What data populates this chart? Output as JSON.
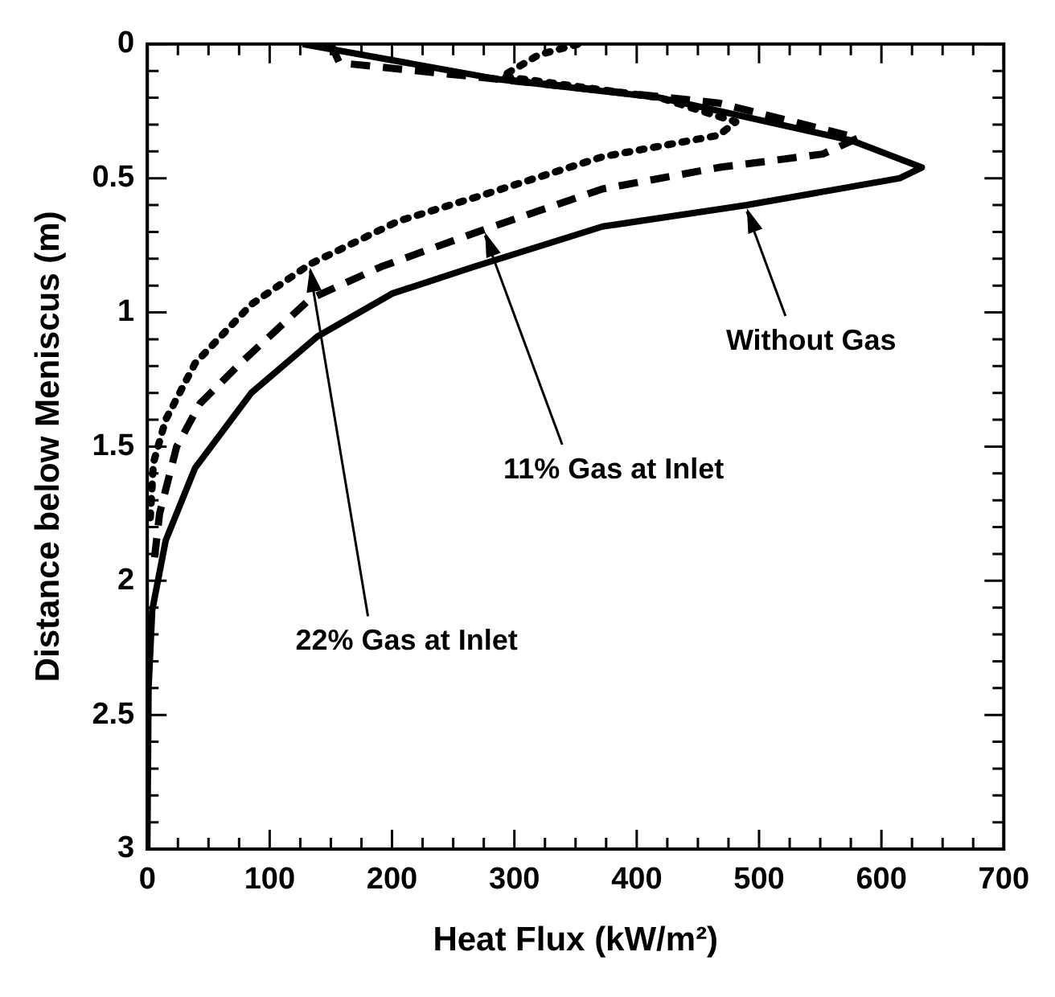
{
  "chart_data": {
    "type": "line",
    "xlabel": "Heat Flux (kW/m²)",
    "ylabel": "Distance below Meniscus (m)",
    "xlim": [
      0,
      700
    ],
    "ylim": [
      3,
      0
    ],
    "xticks": [
      0,
      {
        "value": 25,
        "label": null
      },
      {
        "value": 50,
        "label": null
      },
      {
        "value": 75,
        "label": null
      },
      100,
      {
        "value": 125,
        "label": null
      },
      {
        "value": 150,
        "label": null
      },
      {
        "value": 175,
        "label": null
      },
      200,
      {
        "value": 225,
        "label": null
      },
      {
        "value": 250,
        "label": null
      },
      {
        "value": 275,
        "label": null
      },
      300,
      {
        "value": 325,
        "label": null
      },
      {
        "value": 350,
        "label": null
      },
      {
        "value": 375,
        "label": null
      },
      400,
      {
        "value": 425,
        "label": null
      },
      {
        "value": 450,
        "label": null
      },
      {
        "value": 475,
        "label": null
      },
      500,
      {
        "value": 525,
        "label": null
      },
      {
        "value": 550,
        "label": null
      },
      {
        "value": 575,
        "label": null
      },
      600,
      {
        "value": 625,
        "label": null
      },
      {
        "value": 650,
        "label": null
      },
      {
        "value": 675,
        "label": null
      },
      700
    ],
    "yticks": [
      0,
      {
        "value": 0.1,
        "label": null
      },
      {
        "value": 0.2,
        "label": null
      },
      {
        "value": 0.3,
        "label": null
      },
      {
        "value": 0.4,
        "label": null
      },
      {
        "value": 0.5,
        "label": "0.5"
      },
      {
        "value": 0.6,
        "label": null
      },
      {
        "value": 0.7,
        "label": null
      },
      {
        "value": 0.8,
        "label": null
      },
      {
        "value": 0.9,
        "label": null
      },
      1,
      {
        "value": 1.1,
        "label": null
      },
      {
        "value": 1.2,
        "label": null
      },
      {
        "value": 1.3,
        "label": null
      },
      {
        "value": 1.4,
        "label": null
      },
      {
        "value": 1.5,
        "label": "1.5"
      },
      {
        "value": 1.6,
        "label": null
      },
      {
        "value": 1.7,
        "label": null
      },
      {
        "value": 1.8,
        "label": null
      },
      {
        "value": 1.9,
        "label": null
      },
      2,
      {
        "value": 2.1,
        "label": null
      },
      {
        "value": 2.2,
        "label": null
      },
      {
        "value": 2.3,
        "label": null
      },
      {
        "value": 2.4,
        "label": null
      },
      {
        "value": 2.5,
        "label": "2.5"
      },
      {
        "value": 2.6,
        "label": null
      },
      {
        "value": 2.7,
        "label": null
      },
      {
        "value": 2.8,
        "label": null
      },
      {
        "value": 2.9,
        "label": null
      },
      3
    ],
    "grid": false,
    "legend": false,
    "marker": "none",
    "series": [
      {
        "color": "#000000",
        "line_style": "solid",
        "x": [
          127,
          285,
          419,
          576,
          633,
          615,
          490,
          372,
          267,
          200,
          139,
          85,
          39,
          15,
          4,
          1,
          0
        ],
        "values": [
          0,
          0.13,
          0.2,
          0.36,
          0.46,
          0.5,
          0.6,
          0.68,
          0.83,
          0.93,
          1.09,
          1.3,
          1.58,
          1.85,
          2.11,
          2.4,
          3
        ]
      },
      {
        "color": "#000000",
        "line_style": "dashed",
        "x": [
          150,
          157,
          285,
          467,
          581,
          552,
          467,
          372,
          276,
          191,
          133,
          76,
          43,
          24,
          10,
          5
        ],
        "values": [
          0,
          0.07,
          0.13,
          0.22,
          0.35,
          0.41,
          0.46,
          0.54,
          0.69,
          0.83,
          0.95,
          1.19,
          1.34,
          1.5,
          1.75,
          1.95
        ]
      },
      {
        "color": "#000000",
        "line_style": "dotted",
        "x": [
          352,
          320,
          290,
          419,
          481,
          467,
          372,
          276,
          205,
          133,
          85,
          39,
          15,
          5,
          2
        ],
        "values": [
          0,
          0.04,
          0.12,
          0.2,
          0.29,
          0.34,
          0.42,
          0.56,
          0.66,
          0.82,
          0.97,
          1.19,
          1.4,
          1.56,
          1.8
        ]
      }
    ],
    "annotations": [
      {
        "text": "Without Gas",
        "x": 490,
        "y": 0.6
      },
      {
        "text": "11% Gas at Inlet",
        "x": 276,
        "y": 0.69
      },
      {
        "text": "22% Gas at Inlet",
        "x": 133,
        "y": 0.82
      }
    ]
  }
}
